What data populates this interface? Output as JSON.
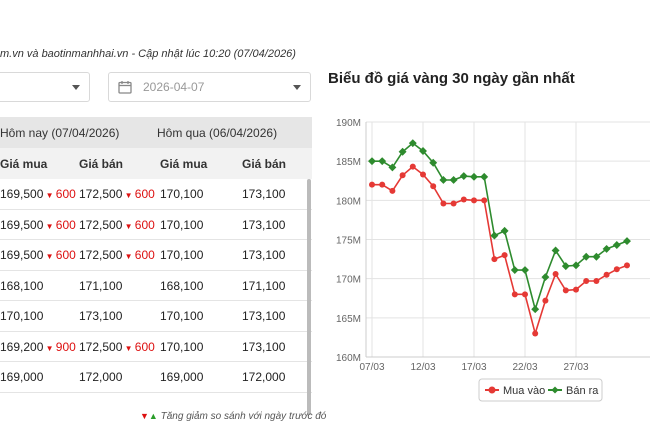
{
  "source_text": "m.vn và baotinmanhhai.vn - Cập nhật lúc 10:20 (07/04/2026)",
  "filters": {
    "left_select_value": "",
    "date_value": "2026-04-07"
  },
  "table": {
    "group_headers": [
      "Hôm nay (07/04/2026)",
      "Hôm qua (06/04/2026)"
    ],
    "columns": [
      "Giá mua",
      "Giá bán",
      "Giá mua",
      "Giá bán"
    ],
    "rows": [
      {
        "buy_today": "169,500",
        "buy_change": "600",
        "sell_today": "172,500",
        "sell_change": "600",
        "buy_yesterday": "170,100",
        "sell_yesterday": "173,100"
      },
      {
        "buy_today": "169,500",
        "buy_change": "600",
        "sell_today": "172,500",
        "sell_change": "600",
        "buy_yesterday": "170,100",
        "sell_yesterday": "173,100"
      },
      {
        "buy_today": "169,500",
        "buy_change": "600",
        "sell_today": "172,500",
        "sell_change": "600",
        "buy_yesterday": "170,100",
        "sell_yesterday": "173,100"
      },
      {
        "buy_today": "168,100",
        "buy_change": "",
        "sell_today": "171,100",
        "sell_change": "",
        "buy_yesterday": "168,100",
        "sell_yesterday": "171,100"
      },
      {
        "buy_today": "170,100",
        "buy_change": "",
        "sell_today": "173,100",
        "sell_change": "",
        "buy_yesterday": "170,100",
        "sell_yesterday": "173,100"
      },
      {
        "buy_today": "169,200",
        "buy_change": "900",
        "sell_today": "172,500",
        "sell_change": "600",
        "buy_yesterday": "170,100",
        "sell_yesterday": "173,100"
      },
      {
        "buy_today": "169,000",
        "buy_change": "",
        "sell_today": "172,000",
        "sell_change": "",
        "buy_yesterday": "169,000",
        "sell_yesterday": "172,000"
      }
    ],
    "note": "Tăng giảm so sánh với ngày trước đó"
  },
  "colors": {
    "up": "#2a9d2a",
    "down": "#d11111",
    "buy_series": "#e53935",
    "sell_series": "#2e8b2e"
  },
  "chart_data": {
    "type": "line",
    "title": "Biểu đồ giá vàng 30 ngày gần nhất",
    "y_tick_labels": [
      "160M",
      "165M",
      "170M",
      "175M",
      "180M",
      "185M",
      "190M"
    ],
    "ylim": [
      160,
      190
    ],
    "x_tick_labels": [
      "07/03",
      "12/03",
      "17/03",
      "22/03",
      "27/03"
    ],
    "x": [
      "07/03",
      "08/03",
      "09/03",
      "10/03",
      "11/03",
      "12/03",
      "13/03",
      "14/03",
      "15/03",
      "16/03",
      "17/03",
      "18/03",
      "19/03",
      "20/03",
      "21/03",
      "22/03",
      "23/03",
      "24/03",
      "25/03",
      "26/03",
      "27/03",
      "28/03",
      "29/03",
      "30/03",
      "31/03",
      "01/04"
    ],
    "grid": true,
    "legend_position": "bottom",
    "series": [
      {
        "name": "Mua vào",
        "values": [
          182.0,
          182.0,
          181.2,
          183.2,
          184.3,
          183.3,
          181.8,
          179.6,
          179.6,
          180.1,
          180.0,
          180.0,
          172.5,
          173.0,
          168.0,
          168.0,
          163.0,
          167.2,
          170.6,
          168.5,
          168.6,
          169.7,
          169.7,
          170.5,
          171.2,
          171.7
        ]
      },
      {
        "name": "Bán ra",
        "values": [
          185.0,
          185.0,
          184.2,
          186.2,
          187.3,
          186.3,
          184.8,
          182.6,
          182.6,
          183.1,
          183.0,
          183.0,
          175.5,
          176.1,
          171.1,
          171.1,
          166.1,
          170.2,
          173.6,
          171.6,
          171.7,
          172.8,
          172.8,
          173.8,
          174.3,
          174.8
        ]
      }
    ]
  }
}
